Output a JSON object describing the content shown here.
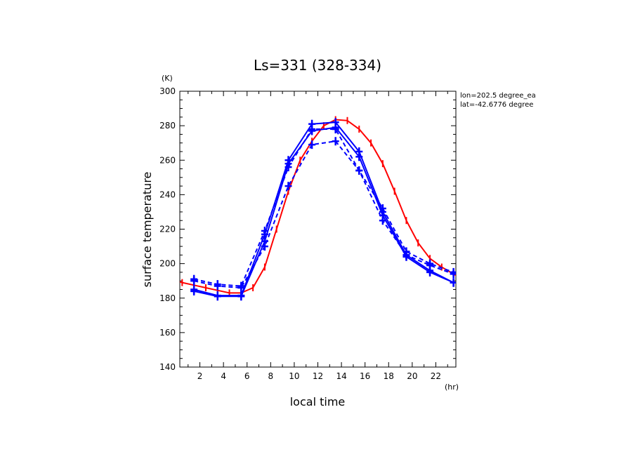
{
  "chart_data": {
    "type": "line",
    "title": "Ls=331 (328-334)",
    "xlabel": "local time",
    "ylabel": "surface temperature",
    "x_unit": "(hr)",
    "y_unit": "(K)",
    "annotations": [
      "lon=202.5 degree_ea",
      "lat=-42.6776 degree"
    ],
    "xlim": [
      0.3,
      23.7
    ],
    "ylim": [
      140,
      300
    ],
    "x_ticks": [
      2,
      4,
      6,
      8,
      10,
      12,
      14,
      16,
      18,
      20,
      22
    ],
    "y_ticks": [
      140,
      160,
      180,
      200,
      220,
      240,
      260,
      280,
      300
    ],
    "grid": false,
    "colors": {
      "red": "#ff0000",
      "blue": "#0000ff"
    },
    "series": [
      {
        "color": "#ff0000",
        "style": "solid",
        "marker": "tick",
        "x": [
          0.0,
          0.5,
          1.5,
          2.5,
          3.5,
          4.5,
          5.5,
          6.5,
          7.5,
          8.5,
          9.5,
          10.5,
          11.5,
          12.5,
          13.5,
          14.5,
          15.5,
          16.5,
          17.5,
          18.5,
          19.5,
          20.5,
          21.5,
          22.5,
          23.5,
          24.0
        ],
        "y": [
          190,
          189,
          187.5,
          186,
          184.5,
          183,
          183,
          186,
          198,
          220,
          242,
          260,
          271,
          280,
          283.5,
          283,
          278,
          270,
          258,
          242,
          225,
          212,
          203,
          198,
          194,
          192
        ]
      },
      {
        "color": "#0000ff",
        "style": "solid",
        "marker": "cross",
        "x": [
          1.5,
          3.5,
          5.5,
          7.5,
          9.5,
          11.5,
          13.5,
          15.5,
          17.5,
          19.5,
          21.5,
          23.5
        ],
        "y": [
          185,
          181.5,
          181.5,
          217,
          260,
          281,
          282,
          265,
          230,
          205,
          196,
          189
        ]
      },
      {
        "color": "#0000ff",
        "style": "solid",
        "marker": "cross",
        "x": [
          1.5,
          3.5,
          5.5,
          7.5,
          9.5,
          11.5,
          13.5,
          15.5,
          17.5,
          19.5,
          21.5,
          23.5
        ],
        "y": [
          184,
          181,
          181,
          213,
          258,
          277,
          279,
          262,
          228,
          204,
          195,
          189
        ]
      },
      {
        "color": "#0000ff",
        "style": "dashed",
        "marker": "cross",
        "x": [
          1.5,
          3.5,
          5.5,
          7.5,
          9.5,
          11.5,
          13.5,
          15.5,
          17.5,
          19.5,
          21.5,
          23.5
        ],
        "y": [
          191,
          188,
          187,
          219,
          256,
          278,
          278,
          254,
          232,
          207,
          200,
          195
        ]
      },
      {
        "color": "#0000ff",
        "style": "dashed",
        "marker": "cross",
        "x": [
          1.5,
          3.5,
          5.5,
          7.5,
          9.5,
          11.5,
          13.5,
          15.5,
          17.5,
          19.5,
          21.5,
          23.5
        ],
        "y": [
          190,
          187,
          186,
          210,
          245,
          269,
          271,
          254,
          225,
          205,
          199,
          194
        ]
      }
    ]
  }
}
